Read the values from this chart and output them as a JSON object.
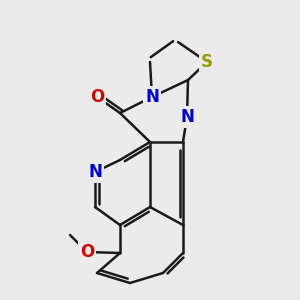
{
  "bg": "#ebebeb",
  "lw": 1.8,
  "off": 3.5,
  "shr": 0.12,
  "atoms": {
    "S": [
      207,
      62,
      "#999900",
      "S",
      12
    ],
    "N17": [
      152,
      97,
      "#0000cc",
      "N",
      12
    ],
    "N12": [
      187,
      117,
      "#0000cc",
      "N",
      12
    ],
    "O": [
      97,
      97,
      "#cc0000",
      "O",
      12
    ],
    "N8": [
      95,
      172,
      "#0000cc",
      "N",
      12
    ],
    "O6": [
      87,
      252,
      "#cc0000",
      "O",
      12
    ]
  },
  "single_bonds": [
    [
      [
        207,
        62
      ],
      [
        188,
        80
      ]
    ],
    [
      [
        188,
        80
      ],
      [
        187,
        117
      ]
    ],
    [
      [
        207,
        62
      ],
      [
        178,
        42
      ]
    ],
    [
      [
        150,
        62
      ],
      [
        152,
        97
      ]
    ],
    [
      [
        152,
        97
      ],
      [
        188,
        80
      ]
    ],
    [
      [
        152,
        97
      ],
      [
        120,
        113
      ]
    ],
    [
      [
        120,
        113
      ],
      [
        150,
        142
      ]
    ],
    [
      [
        150,
        142
      ],
      [
        183,
        142
      ]
    ],
    [
      [
        183,
        142
      ],
      [
        187,
        117
      ]
    ],
    [
      [
        120,
        113
      ],
      [
        97,
        97
      ]
    ],
    [
      [
        150,
        142
      ],
      [
        120,
        160
      ]
    ],
    [
      [
        120,
        160
      ],
      [
        95,
        172
      ]
    ],
    [
      [
        95,
        172
      ],
      [
        95,
        207
      ]
    ],
    [
      [
        95,
        207
      ],
      [
        120,
        225
      ]
    ],
    [
      [
        120,
        225
      ],
      [
        150,
        207
      ]
    ],
    [
      [
        150,
        207
      ],
      [
        183,
        225
      ]
    ],
    [
      [
        183,
        225
      ],
      [
        183,
        142
      ]
    ],
    [
      [
        150,
        207
      ],
      [
        150,
        142
      ]
    ],
    [
      [
        120,
        225
      ],
      [
        120,
        253
      ]
    ],
    [
      [
        120,
        253
      ],
      [
        87,
        252
      ]
    ],
    [
      [
        87,
        252
      ],
      [
        70,
        235
      ]
    ],
    [
      [
        120,
        253
      ],
      [
        97,
        273
      ]
    ],
    [
      [
        97,
        273
      ],
      [
        130,
        283
      ]
    ],
    [
      [
        130,
        283
      ],
      [
        163,
        273
      ]
    ],
    [
      [
        163,
        273
      ],
      [
        183,
        253
      ]
    ],
    [
      [
        183,
        253
      ],
      [
        183,
        225
      ]
    ]
  ],
  "double_bonds": [
    [
      [
        178,
        42
      ],
      [
        150,
        62
      ],
      1,
      0.1
    ],
    [
      [
        120,
        113
      ],
      [
        97,
        97
      ],
      1,
      0.0
    ],
    [
      [
        150,
        142
      ],
      [
        120,
        160
      ],
      -1,
      0.1
    ],
    [
      [
        95,
        172
      ],
      [
        95,
        207
      ],
      -1,
      0.08
    ],
    [
      [
        120,
        225
      ],
      [
        150,
        207
      ],
      1,
      0.1
    ],
    [
      [
        183,
        225
      ],
      [
        183,
        142
      ],
      -1,
      0.1
    ],
    [
      [
        97,
        273
      ],
      [
        130,
        283
      ],
      -1,
      0.1
    ],
    [
      [
        163,
        273
      ],
      [
        183,
        253
      ],
      1,
      0.1
    ]
  ]
}
